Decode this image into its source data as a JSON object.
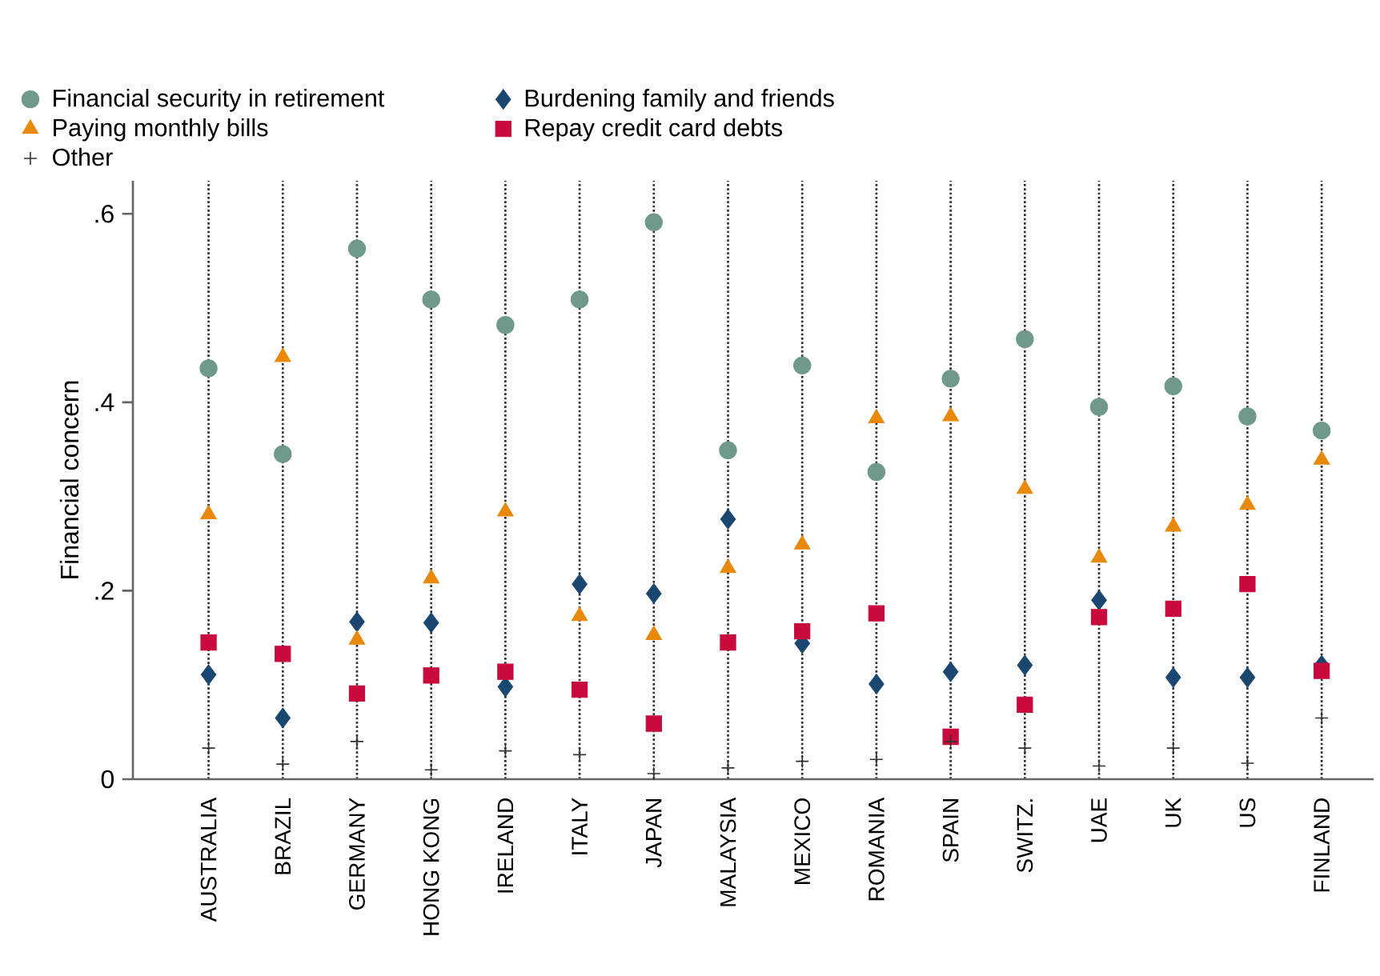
{
  "chart_data": {
    "type": "scatter",
    "ylabel": "Financial concern",
    "categories": [
      "AUSTRALIA",
      "BRAZIL",
      "GERMANY",
      "HONG KONG",
      "IRELAND",
      "ITALY",
      "JAPAN",
      "MALAYSIA",
      "MEXICO",
      "ROMANIA",
      "SPAIN",
      "SWITZ.",
      "UAE",
      "UK",
      "US",
      "FINLAND"
    ],
    "series": [
      {
        "name": "Financial security in retirement",
        "color": "#6f9a8a",
        "marker": "circle",
        "values": [
          0.436,
          0.345,
          0.563,
          0.509,
          0.482,
          0.509,
          0.591,
          0.349,
          0.439,
          0.326,
          0.425,
          0.467,
          0.395,
          0.417,
          0.385,
          0.37
        ]
      },
      {
        "name": "Burdening family and friends",
        "color": "#1a476f",
        "marker": "diamond",
        "values": [
          0.111,
          0.065,
          0.167,
          0.166,
          0.098,
          0.207,
          0.197,
          0.276,
          0.144,
          0.101,
          0.114,
          0.121,
          0.19,
          0.108,
          0.108,
          0.121
        ]
      },
      {
        "name": "Paying monthly bills",
        "color": "#e8890c",
        "marker": "triangle",
        "values": [
          0.281,
          0.448,
          0.148,
          0.213,
          0.284,
          0.173,
          0.153,
          0.224,
          0.249,
          0.383,
          0.385,
          0.308,
          0.235,
          0.268,
          0.291,
          0.339
        ]
      },
      {
        "name": "Repay credit card debts",
        "color": "#c80a3c",
        "marker": "square",
        "values": [
          0.145,
          0.133,
          0.091,
          0.11,
          0.114,
          0.095,
          0.059,
          0.145,
          0.157,
          0.176,
          0.045,
          0.079,
          0.172,
          0.181,
          0.207,
          0.115
        ]
      },
      {
        "name": "Other",
        "color": "#333333",
        "marker": "cross",
        "values": [
          0.033,
          0.016,
          0.04,
          0.01,
          0.03,
          0.026,
          0.006,
          0.012,
          0.019,
          0.021,
          0.04,
          0.033,
          0.014,
          0.033,
          0.017,
          0.065
        ]
      }
    ],
    "ylim": [
      0,
      0.635
    ],
    "yticks": [
      0,
      {
        "value": 0.2,
        "label": ".2"
      },
      {
        "value": 0.4,
        "label": ".4"
      },
      {
        "value": 0.6,
        "label": ".6"
      }
    ],
    "grid": "x",
    "legend": "top"
  }
}
